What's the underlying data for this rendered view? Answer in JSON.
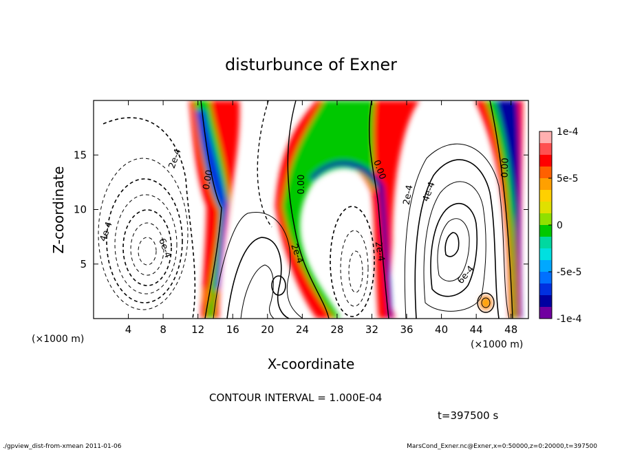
{
  "chart_data": {
    "type": "heatmap",
    "title": "disturbunce of Exner",
    "xlabel": "X-coordinate",
    "ylabel": "Z-coordinate",
    "x_unit_left": "(×1000 m)",
    "x_unit_right": "(×1000 m)",
    "xlim": [
      0,
      50
    ],
    "ylim": [
      0,
      20
    ],
    "x_ticks": [
      4,
      8,
      12,
      16,
      20,
      24,
      28,
      32,
      36,
      40,
      44,
      48
    ],
    "y_ticks": [
      5,
      10,
      15
    ],
    "colorbar": {
      "ticks": [
        {
          "value": 0.0001,
          "label": "1e-4"
        },
        {
          "value": 5e-05,
          "label": "5e-5"
        },
        {
          "value": 0,
          "label": "0"
        },
        {
          "value": -5e-05,
          "label": "-5e-5"
        },
        {
          "value": -0.0001,
          "label": "-1e-4"
        }
      ],
      "range": [
        -0.0001,
        0.0001
      ],
      "colors": [
        "#ffb0b0",
        "#ff5050",
        "#ff0000",
        "#ff6000",
        "#ffa000",
        "#ffd000",
        "#e0e000",
        "#90e000",
        "#00c800",
        "#00d8a0",
        "#00e0e0",
        "#00a8ff",
        "#0070ff",
        "#0030e0",
        "#0000a0",
        "#7000a0"
      ]
    },
    "contour_labels": [
      "2e-4",
      "4e-4",
      "6e-4",
      "0.00",
      "0.00",
      "2e-4",
      "0.00",
      "2e-4",
      "2e-4",
      "4e-4",
      "6e-4",
      "0.00",
      "4e-4",
      "6e-4"
    ],
    "contour_interval": "CONTOUR INTERVAL = 1.000E-04",
    "time_label": "t=397500 s"
  },
  "footer": {
    "left": "./gpview_dist-from-xmean  2011-01-06",
    "right": "MarsCond_Exner.nc@Exner,x=0:50000,z=0:20000,t=397500"
  }
}
